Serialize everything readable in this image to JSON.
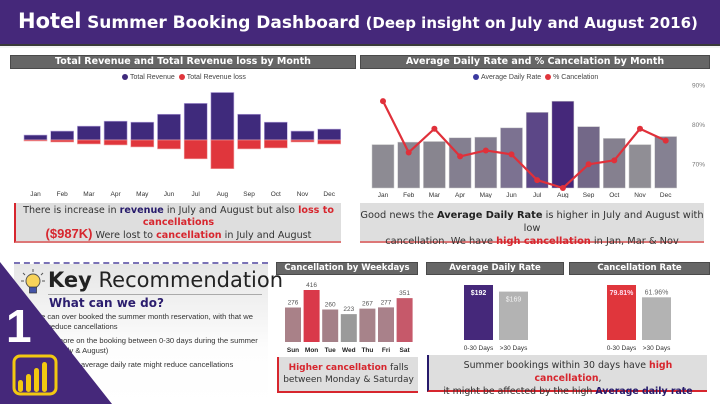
{
  "header": {
    "title_part1": "Hotel",
    "title_part2": "Summer Booking Dashboard",
    "title_part3": "(Deep insight on July and August 2016)"
  },
  "colors": {
    "brand_purple": "#45287a",
    "revenue": "#3f2a7c",
    "loss": "#e0363c",
    "title_bar": "#666666",
    "insight_bg": "#dedede",
    "power_bi_yellow": "#f2c811"
  },
  "revenue_chart": {
    "title": "Total Revenue and Total Revenue loss by Month",
    "legend": [
      "Total Revenue",
      "Total Revenue loss"
    ],
    "chart_data": {
      "type": "bar",
      "title": "Total Revenue and Total Revenue loss by Month",
      "categories": [
        "Jan",
        "Feb",
        "Mar",
        "Apr",
        "May",
        "Jun",
        "Jul",
        "Aug",
        "Sep",
        "Oct",
        "Nov",
        "Dec"
      ],
      "series": [
        {
          "name": "Total Revenue",
          "values": [
            5,
            9,
            14,
            19,
            18,
            26,
            37,
            48,
            26,
            18,
            9,
            11
          ]
        },
        {
          "name": "Total Revenue loss",
          "values": [
            -1,
            -2,
            -4,
            -5,
            -7,
            -9,
            -19,
            -29,
            -9,
            -8,
            -2,
            -4
          ]
        }
      ],
      "units": "relative",
      "xlabel": "",
      "ylabel": "",
      "grid": false,
      "legend": "top-center"
    }
  },
  "revenue_insight": {
    "l1_a": "There is increase in ",
    "l1_b": "revenue",
    "l1_c": "  in July and August but also ",
    "l1_d": "loss to cancellations",
    "l2_a": "($987K)",
    "l2_b": " Were lost to ",
    "l2_c": "cancellation",
    "l2_d": " in July and August"
  },
  "adr_chart": {
    "title": "Average Daily Rate and % Cancelation by Month",
    "legend": [
      "Average Daily Rate",
      "% Cancelation"
    ],
    "y_ticks": [
      "90%",
      "80%",
      "70%"
    ],
    "chart_data": {
      "type": "bar",
      "title": "Average Daily Rate and % Cancelation by Month",
      "categories": [
        "Jan",
        "Feb",
        "Mar",
        "Apr",
        "May",
        "Jun",
        "Jul",
        "Aug",
        "Sep",
        "Oct",
        "Nov",
        "Dec"
      ],
      "series": [
        {
          "name": "Average Daily Rate",
          "type": "bar",
          "values": [
            70,
            74,
            75,
            81,
            82,
            97,
            122,
            140,
            99,
            80,
            70,
            83
          ]
        },
        {
          "name": "% Cancelation",
          "type": "line",
          "axis": "right",
          "values": [
            86,
            73,
            79,
            72,
            73.5,
            72.5,
            66,
            64,
            70,
            71,
            79,
            76
          ]
        }
      ],
      "y2_ticks": [
        "70%",
        "80%",
        "90%"
      ],
      "y2lim": [
        65,
        92
      ],
      "grid": false,
      "legend": "top-center"
    }
  },
  "adr_insight": {
    "l1_a": "Good news the ",
    "l1_b": "Average Daily Rate",
    "l1_c": " is higher in July and August with low",
    "l2_a": "cancellation. We have ",
    "l2_b": "high cancellation",
    "l2_c": " in Jan, Mar & Nov"
  },
  "key_recommendation": {
    "title_bold": "Key",
    "title_rest": " Recommendation",
    "subtitle": "What can we do?",
    "items": [
      "We can over booked the summer month reservation, with that we can reduce cancellations",
      "Focus more on the booking between 0-30 days during the summer period (July & August)",
      "Reducing the average daily rate might reduce cancellations"
    ],
    "badge_number": "1"
  },
  "weekday_chart": {
    "title": "Cancellation by Weekdays",
    "chart_data": {
      "type": "bar",
      "title": "Cancellation by Weekdays",
      "categories": [
        "Sun",
        "Mon",
        "Tue",
        "Wed",
        "Thu",
        "Fri",
        "Sat"
      ],
      "values": [
        276,
        416,
        260,
        223,
        267,
        277,
        351
      ],
      "data_labels": [
        "276",
        "416",
        "260",
        "223",
        "267",
        "277",
        "351"
      ]
    },
    "insight_a": "Higher cancellation",
    "insight_b": " falls between Monday & Saturday"
  },
  "adr_days_chart": {
    "title": "Average Daily Rate",
    "chart_data": {
      "type": "bar",
      "title": "Average Daily Rate",
      "categories": [
        "0-30 Days",
        ">30 Days"
      ],
      "values": [
        192,
        169
      ],
      "data_labels": [
        "$192",
        "$169"
      ]
    }
  },
  "cancel_rate_chart": {
    "title": "Cancellation Rate",
    "chart_data": {
      "type": "bar",
      "title": "Cancellation Rate",
      "categories": [
        "0-30 Days",
        ">30 Days"
      ],
      "values": [
        79.81,
        61.96
      ],
      "data_labels": [
        "79.81%",
        "61.96%"
      ]
    }
  },
  "booking_insight": {
    "l1_a": "Summer bookings within 30 days have ",
    "l1_b": "high cancellation",
    "l1_c": ",",
    "l2_a": "it might be affected by the high ",
    "l2_b": "Average daily rate"
  }
}
